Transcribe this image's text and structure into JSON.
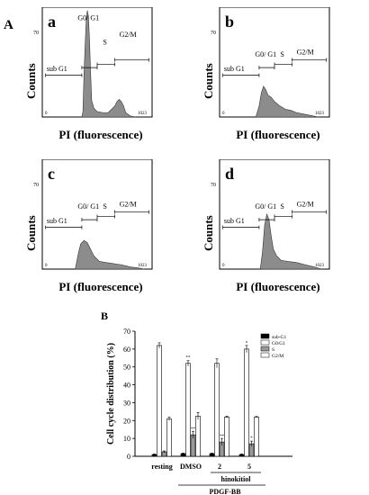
{
  "labels": {
    "panel_A": "A",
    "panel_B": "B"
  },
  "histograms": [
    {
      "id": "a",
      "letter": "a",
      "ymax_label": "70",
      "xmin_label": "0",
      "xmax_label": "1023",
      "xlabel": "PI (fluorescence)",
      "ylabel": "Counts",
      "region_labels": {
        "g0g1": "G0/ G1",
        "s": "S",
        "g2m": "G2/M",
        "sub": "sub G1"
      }
    },
    {
      "id": "b",
      "letter": "b",
      "ymax_label": "70",
      "xmin_label": "0",
      "xmax_label": "1023",
      "xlabel": "PI (fluorescence)",
      "ylabel": "Counts",
      "region_labels": {
        "g0g1": "G0/ G1",
        "s": "S",
        "g2m": "G2/M",
        "sub": "sub G1"
      }
    },
    {
      "id": "c",
      "letter": "c",
      "ymax_label": "70",
      "xmin_label": "0",
      "xmax_label": "1023",
      "xlabel": "PI (fluorescence)",
      "ylabel": "Counts",
      "region_labels": {
        "g0g1": "G0/ G1",
        "s": "S",
        "g2m": "G2/M",
        "sub": "sub G1"
      }
    },
    {
      "id": "d",
      "letter": "d",
      "ymax_label": "70",
      "xmin_label": "0",
      "xmax_label": "1023",
      "xlabel": "PI (fluorescence)",
      "ylabel": "Counts",
      "region_labels": {
        "g0g1": "G0/ G1",
        "s": "S",
        "g2m": "G2/M",
        "sub": "sub G1"
      }
    }
  ],
  "chart_data": {
    "type": "bar",
    "ylabel": "Cell cycle distribution (%)",
    "ylim": [
      0,
      70
    ],
    "yticks": [
      0,
      10,
      20,
      30,
      40,
      50,
      60,
      70
    ],
    "categories": [
      "resting",
      "DMSO",
      "2",
      "5"
    ],
    "group_label": "hinokitiol",
    "bracket_label": "PDGF-BB",
    "legend_position": "top-right",
    "series": [
      {
        "name": "sub-G1",
        "color": "#000000",
        "values": [
          1,
          1.5,
          1.5,
          1
        ],
        "errors": [
          0.3,
          0.3,
          0.3,
          0.3
        ]
      },
      {
        "name": "G0/G1",
        "color": "#ffffff",
        "values": [
          62,
          52,
          52,
          60
        ],
        "errors": [
          1.5,
          1.5,
          2.5,
          2
        ]
      },
      {
        "name": "S",
        "color": "#999999",
        "values": [
          2.5,
          12,
          8,
          7
        ],
        "errors": [
          0.5,
          2,
          2,
          1.5
        ]
      },
      {
        "name": "G2/M",
        "color": "#ffffff",
        "values": [
          21,
          22.5,
          22,
          22
        ],
        "errors": [
          1,
          2,
          0.5,
          0.3
        ]
      }
    ],
    "annotations": [
      "**",
      "**",
      "*",
      "**",
      "*"
    ]
  }
}
